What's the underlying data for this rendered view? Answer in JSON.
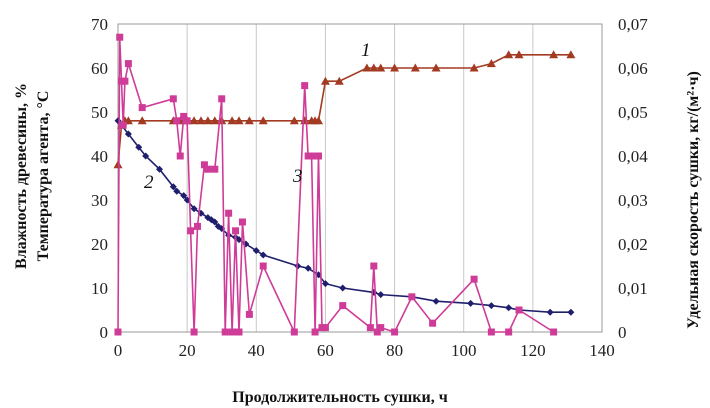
{
  "chart_data": {
    "type": "line",
    "xlabel": "Продолжительность сушки, ч",
    "ylabel_left": [
      "Влажность древесины, %",
      "Температура агента, °С"
    ],
    "ylabel_right": "Удельная скорость сушки, кг/(м²·ч)",
    "xlim": [
      0,
      140
    ],
    "ylim_left": [
      0,
      70
    ],
    "ylim_right": [
      0,
      0.07
    ],
    "x_ticks": [
      "0",
      "20",
      "40",
      "60",
      "80",
      "100",
      "120",
      "140"
    ],
    "y_left_ticks": [
      "0",
      "10",
      "20",
      "30",
      "40",
      "50",
      "60",
      "70"
    ],
    "y_right_ticks": [
      "0",
      "0,01",
      "0,02",
      "0,03",
      "0,04",
      "0,05",
      "0,06",
      "0,07"
    ],
    "grid": "vertical",
    "series": [
      {
        "name": "1",
        "axis": "left",
        "color": "#a33a22",
        "marker": "triangle",
        "x": [
          0,
          1,
          2,
          3,
          7,
          16,
          18,
          20,
          22,
          24,
          26,
          28,
          30,
          33,
          35,
          38,
          42,
          51,
          54,
          56,
          57,
          58,
          60,
          64,
          72,
          74,
          76,
          80,
          86,
          92,
          103,
          108,
          113,
          116,
          126,
          131
        ],
        "y": [
          38,
          47,
          48,
          48,
          48,
          48,
          48,
          48,
          48,
          48,
          48,
          48,
          48,
          48,
          48,
          48,
          48,
          48,
          48,
          48,
          48,
          48,
          57,
          57,
          60,
          60,
          60,
          60,
          60,
          60,
          60,
          61,
          63,
          63,
          63,
          63
        ]
      },
      {
        "name": "2",
        "axis": "left",
        "color": "#1f1f6e",
        "marker": "diamond",
        "x": [
          0,
          1,
          3,
          6,
          8,
          12,
          16,
          17,
          19,
          20,
          22,
          24,
          26,
          27,
          28,
          29,
          30,
          32,
          34,
          35,
          37,
          40,
          42,
          52,
          55,
          58,
          60,
          65,
          74,
          76,
          85,
          92,
          102,
          108,
          113,
          116,
          125,
          131
        ],
        "y": [
          48,
          47,
          45,
          42,
          40,
          37,
          33,
          32,
          31,
          30,
          28,
          27,
          26,
          25.5,
          25,
          24,
          23.5,
          22,
          21.5,
          21,
          20,
          18.5,
          17.5,
          15,
          14.5,
          13,
          11,
          10,
          9,
          8.5,
          8,
          7,
          6.5,
          6,
          5.5,
          5,
          4.5,
          4.5
        ]
      },
      {
        "name": "3",
        "axis": "right",
        "color": "#cf3c98",
        "marker": "square",
        "x": [
          0,
          0.5,
          1,
          1.5,
          2,
          3,
          7,
          16,
          17,
          18,
          19,
          20,
          21,
          22,
          23,
          25,
          26,
          28,
          30,
          31,
          32,
          33,
          34,
          35,
          36,
          38,
          42,
          51,
          54,
          55,
          56,
          57,
          58,
          59,
          60,
          65,
          73,
          74,
          75,
          76,
          80,
          85,
          91,
          103,
          108,
          113,
          116,
          126
        ],
        "y": [
          0,
          0.067,
          0.057,
          0.047,
          0.057,
          0.061,
          0.051,
          0.053,
          0.048,
          0.04,
          0.049,
          0.048,
          0.023,
          0.0,
          0.024,
          0.038,
          0.037,
          0.037,
          0.053,
          0.0,
          0.027,
          0.0,
          0.023,
          0.0,
          0.025,
          0.004,
          0.015,
          0.0,
          0.056,
          0.04,
          0.04,
          0.0,
          0.04,
          0.001,
          0.001,
          0.006,
          0.001,
          0.015,
          0.0,
          0.001,
          0.0,
          0.008,
          0.002,
          0.012,
          0.0,
          0.0,
          0.005,
          0.0
        ]
      }
    ]
  }
}
